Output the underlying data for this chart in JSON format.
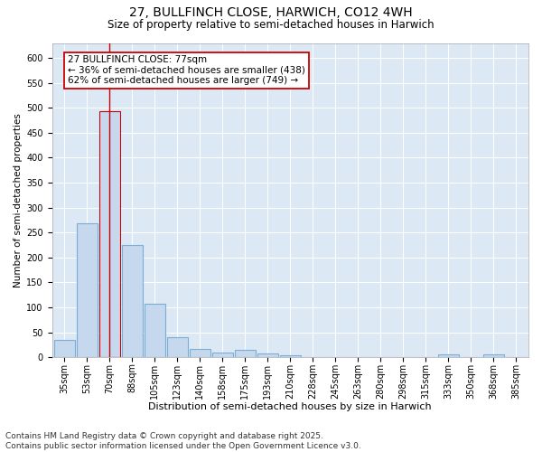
{
  "title1": "27, BULLFINCH CLOSE, HARWICH, CO12 4WH",
  "title2": "Size of property relative to semi-detached houses in Harwich",
  "xlabel": "Distribution of semi-detached houses by size in Harwich",
  "ylabel": "Number of semi-detached properties",
  "categories": [
    "35sqm",
    "53sqm",
    "70sqm",
    "88sqm",
    "105sqm",
    "123sqm",
    "140sqm",
    "158sqm",
    "175sqm",
    "193sqm",
    "210sqm",
    "228sqm",
    "245sqm",
    "263sqm",
    "280sqm",
    "298sqm",
    "315sqm",
    "333sqm",
    "350sqm",
    "368sqm",
    "385sqm"
  ],
  "values": [
    35,
    268,
    493,
    225,
    108,
    40,
    16,
    10,
    15,
    7,
    4,
    0,
    0,
    0,
    0,
    0,
    0,
    5,
    0,
    5,
    0
  ],
  "bar_color": "#c5d8ee",
  "bar_edge_color": "#7aaed4",
  "highlight_bar_index": 2,
  "highlight_bar_edge_color": "#cc0000",
  "red_line_x": 2,
  "annotation_text": "27 BULLFINCH CLOSE: 77sqm\n← 36% of semi-detached houses are smaller (438)\n62% of semi-detached houses are larger (749) →",
  "annotation_box_color": "#ffffff",
  "annotation_box_edge_color": "#cc0000",
  "ylim": [
    0,
    630
  ],
  "yticks": [
    0,
    50,
    100,
    150,
    200,
    250,
    300,
    350,
    400,
    450,
    500,
    550,
    600
  ],
  "background_color": "#dde8f5",
  "footer_line1": "Contains HM Land Registry data © Crown copyright and database right 2025.",
  "footer_line2": "Contains public sector information licensed under the Open Government Licence v3.0.",
  "title1_fontsize": 10,
  "title2_fontsize": 8.5,
  "xlabel_fontsize": 8,
  "ylabel_fontsize": 7.5,
  "tick_fontsize": 7,
  "annotation_fontsize": 7.5,
  "footer_fontsize": 6.5
}
